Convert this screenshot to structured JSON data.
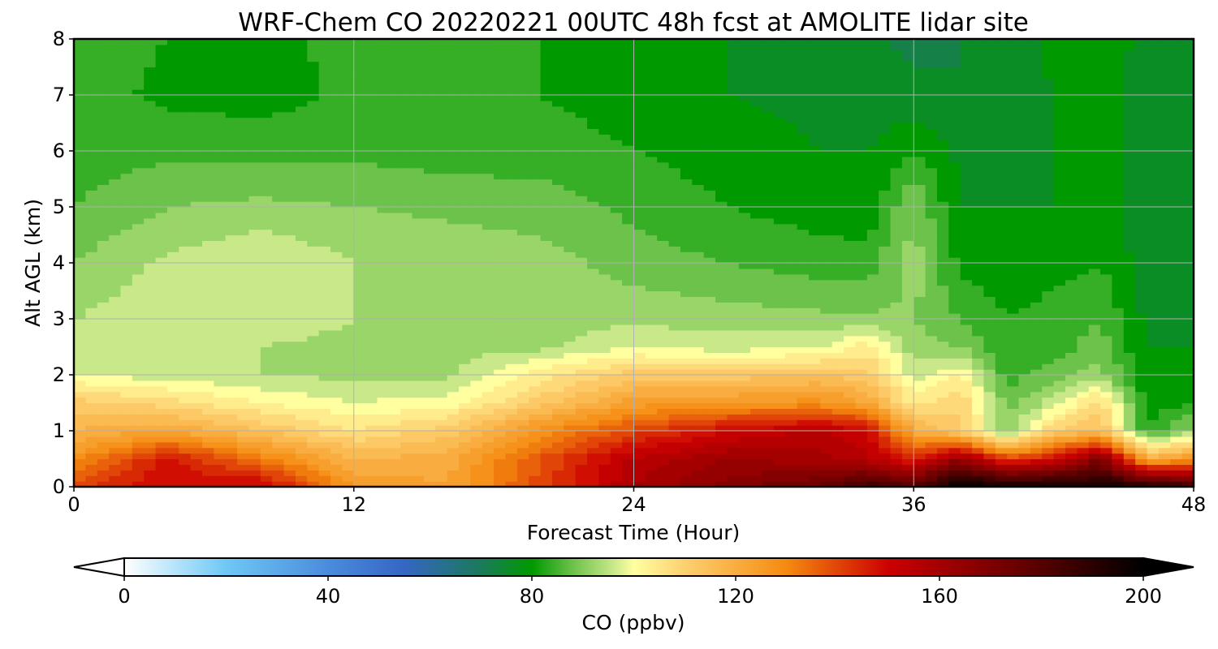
{
  "chart_data": {
    "type": "heatmap",
    "title": "WRF-Chem CO  20220221 00UTC 48h fcst at AMOLITE lidar site",
    "xlabel": "Forecast Time (Hour)",
    "ylabel": "Alt AGL (km)",
    "xlim": [
      0,
      48
    ],
    "ylim": [
      0,
      8
    ],
    "xticks": [
      "0",
      "12",
      "24",
      "36",
      "48"
    ],
    "yticks": [
      "0",
      "1",
      "2",
      "3",
      "4",
      "5",
      "6",
      "7",
      "8"
    ],
    "grid": true,
    "colorbar": {
      "label": "CO  (ppbv)",
      "range": [
        0,
        200
      ],
      "ticks": [
        "0",
        "40",
        "80",
        "120",
        "160",
        "200"
      ],
      "extend": "both",
      "colors": {
        "low_extend": "#ffffff",
        "high_extend": "#000000",
        "stops": [
          {
            "value": 0,
            "color": "#ffffff"
          },
          {
            "value": 20,
            "color": "#6ec8f5"
          },
          {
            "value": 40,
            "color": "#4a8cdc"
          },
          {
            "value": 55,
            "color": "#3566c4"
          },
          {
            "value": 70,
            "color": "#1a7a5a"
          },
          {
            "value": 80,
            "color": "#009900"
          },
          {
            "value": 88,
            "color": "#6cc24a"
          },
          {
            "value": 96,
            "color": "#c8e88a"
          },
          {
            "value": 100,
            "color": "#ffffa0"
          },
          {
            "value": 110,
            "color": "#fdd070"
          },
          {
            "value": 130,
            "color": "#f58a10"
          },
          {
            "value": 150,
            "color": "#cc0000"
          },
          {
            "value": 175,
            "color": "#6a0000"
          },
          {
            "value": 200,
            "color": "#000000"
          }
        ]
      }
    },
    "field": {
      "x": [
        0,
        4,
        8,
        12,
        16,
        20,
        24,
        28,
        32,
        34,
        36,
        38,
        40,
        42,
        44,
        46,
        48
      ],
      "y": [
        0,
        0.5,
        1,
        1.5,
        2,
        2.5,
        3,
        4,
        5,
        6,
        7,
        8
      ],
      "z_ppbv": [
        [
          140,
          150,
          152,
          126,
          122,
          140,
          158,
          168,
          175,
          186,
          180,
          200,
          198,
          196,
          196,
          194,
          185
        ],
        [
          128,
          148,
          132,
          118,
          120,
          138,
          155,
          162,
          160,
          155,
          145,
          165,
          140,
          150,
          170,
          120,
          128
        ],
        [
          118,
          122,
          114,
          106,
          112,
          128,
          140,
          150,
          155,
          150,
          120,
          110,
          90,
          110,
          115,
          82,
          92
        ],
        [
          112,
          108,
          102,
          98,
          100,
          112,
          124,
          126,
          128,
          122,
          104,
          110,
          88,
          96,
          108,
          80,
          82
        ],
        [
          98,
          96,
          94,
          93,
          93,
          104,
          112,
          112,
          114,
          112,
          96,
          102,
          84,
          88,
          92,
          78,
          80
        ],
        [
          94,
          95,
          94,
          93,
          92,
          93,
          98,
          96,
          98,
          104,
          92,
          90,
          82,
          84,
          88,
          78,
          78
        ],
        [
          94,
          97,
          96,
          94,
          93,
          92,
          93,
          92,
          91,
          91,
          90,
          86,
          82,
          84,
          86,
          77,
          78
        ],
        [
          90,
          95,
          98,
          94,
          93,
          92,
          88,
          86,
          84,
          84,
          92,
          81,
          79,
          80,
          82,
          76,
          77
        ],
        [
          86,
          90,
          91,
          90,
          89,
          88,
          85,
          82,
          80,
          79,
          90,
          78,
          78,
          78,
          80,
          75,
          76
        ],
        [
          84,
          85,
          85,
          85,
          84,
          84,
          82,
          80,
          78,
          78,
          82,
          77,
          76,
          78,
          80,
          75,
          77
        ],
        [
          84,
          81,
          80,
          83,
          83,
          82,
          80,
          78,
          77,
          75,
          75,
          74,
          76,
          78,
          80,
          76,
          77
        ],
        [
          84,
          82,
          80,
          84,
          84,
          82,
          80,
          78,
          77,
          75,
          73,
          74,
          76,
          79,
          80,
          77,
          78
        ]
      ]
    }
  }
}
